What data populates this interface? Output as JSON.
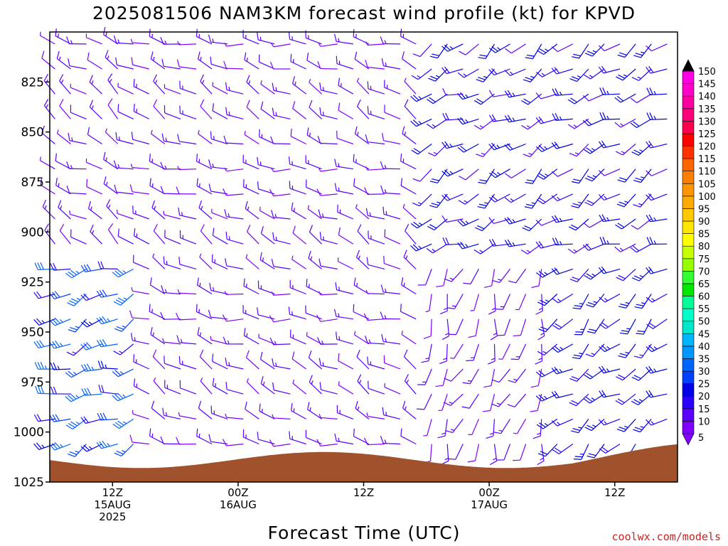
{
  "title": "2025081506 NAM3KM forecast wind profile (kt) for KPVD",
  "credit": "coolwx.com/models",
  "chart_data": {
    "type": "wind-barb time-height",
    "title": "2025081506 NAM3KM forecast wind profile (kt) for KPVD",
    "xlabel": "Forecast Time (UTC)",
    "ylabel": "",
    "y_ticks": [
      825,
      850,
      875,
      900,
      925,
      950,
      975,
      1000,
      1025
    ],
    "ylim": [
      1025,
      800
    ],
    "xlim_hours": [
      0,
      60
    ],
    "x_ticks": [
      {
        "hour": 6,
        "lines": [
          "12Z",
          "15AUG",
          "2025"
        ]
      },
      {
        "hour": 18,
        "lines": [
          "00Z",
          "16AUG"
        ]
      },
      {
        "hour": 30,
        "lines": [
          "12Z"
        ]
      },
      {
        "hour": 42,
        "lines": [
          "00Z",
          "17AUG"
        ]
      },
      {
        "hour": 54,
        "lines": [
          "12Z"
        ]
      }
    ],
    "colorbar": {
      "levels": [
        5,
        10,
        15,
        20,
        25,
        30,
        35,
        40,
        45,
        50,
        55,
        60,
        65,
        70,
        75,
        80,
        85,
        90,
        95,
        100,
        105,
        110,
        115,
        120,
        125,
        130,
        135,
        140,
        145,
        150
      ],
      "colors": [
        "#7f00ff",
        "#5a00ff",
        "#2a00ff",
        "#0000e6",
        "#0040ff",
        "#0064ff",
        "#0096ff",
        "#00b4ff",
        "#00e6c8",
        "#00ffc8",
        "#00ff96",
        "#00e600",
        "#32ff32",
        "#96ff00",
        "#c8ff00",
        "#ffff00",
        "#ffe600",
        "#ffc800",
        "#ffaa00",
        "#ff9600",
        "#ff7f00",
        "#ff6400",
        "#ff3200",
        "#ff0000",
        "#ff0050",
        "#ff0078",
        "#ff00a0",
        "#ff00c8",
        "#ff00e6",
        "#ff00ff"
      ]
    },
    "terrain_color": "#a0522d",
    "wind_profile": {
      "description_rule": "gridded forecast winds; direction (deg, from) and speed (kt)",
      "times_hours_step": 1.5,
      "levels_hpa_step": 12.5,
      "regimes": [
        {
          "time_range_h": [
            0,
            9
          ],
          "levels": "below 925",
          "direction_deg": 250,
          "speed_kt": [
            15,
            35
          ]
        },
        {
          "time_range_h": [
            0,
            9
          ],
          "levels": "above 900",
          "direction_deg": 300,
          "speed_kt": [
            5,
            15
          ]
        },
        {
          "time_range_h": [
            9,
            36
          ],
          "levels": "all",
          "direction_deg": 290,
          "speed_kt": [
            5,
            15
          ]
        },
        {
          "time_range_h": [
            36,
            48
          ],
          "levels": "below 925",
          "direction_deg": 200,
          "speed_kt": [
            5,
            15
          ]
        },
        {
          "time_range_h": [
            36,
            60
          ],
          "levels": "above 900",
          "direction_deg": 240,
          "speed_kt": [
            10,
            25
          ]
        },
        {
          "time_range_h": [
            48,
            60
          ],
          "levels": "below 925",
          "direction_deg": 230,
          "speed_kt": [
            15,
            25
          ]
        }
      ]
    }
  }
}
